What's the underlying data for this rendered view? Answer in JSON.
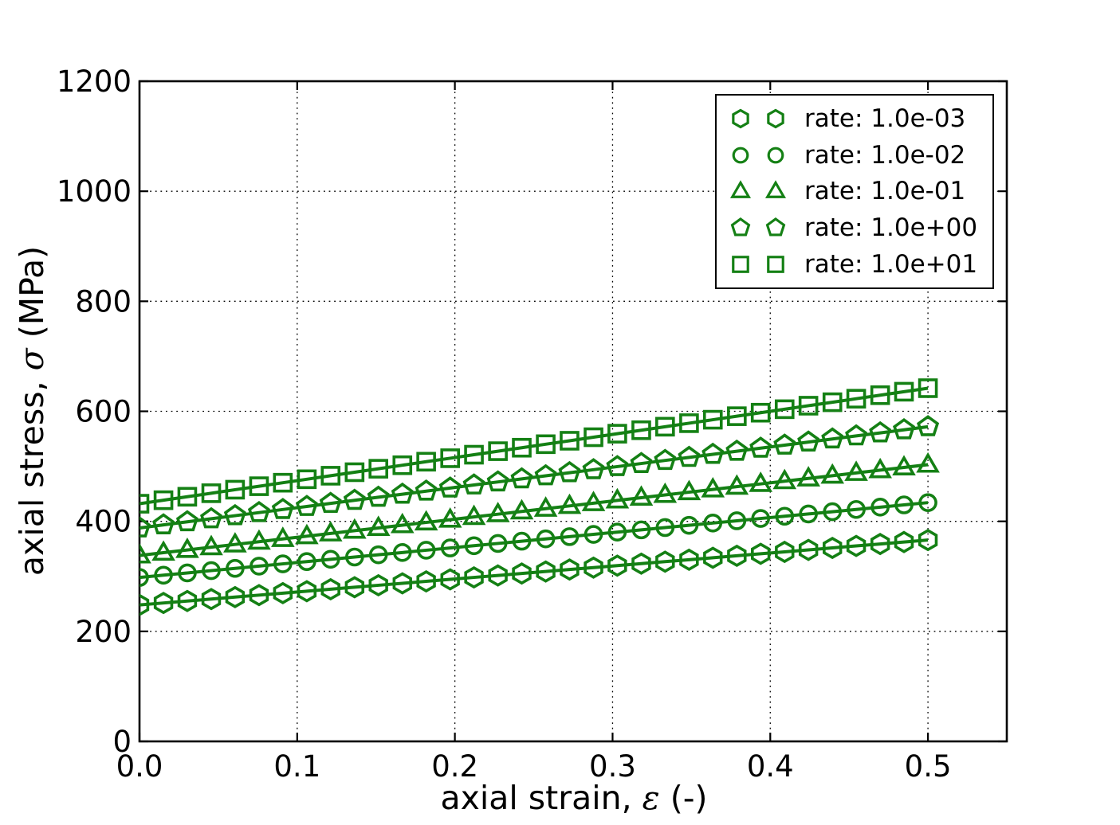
{
  "figure": {
    "background": "#ffffff",
    "axis_color": "#000000"
  },
  "chart_data": {
    "type": "line",
    "title": "",
    "xlabel": "axial strain, ε (-)",
    "ylabel": "axial stress, σ (MPa)",
    "label_parts": {
      "x_prefix": "axial strain, ",
      "x_symbol": "ε",
      "x_suffix": " (-)",
      "y_prefix": "axial stress, ",
      "y_symbol": "σ",
      "y_suffix": " (MPa)"
    },
    "xlim": [
      0,
      0.55
    ],
    "ylim": [
      0,
      1200
    ],
    "xticks": [
      0.0,
      0.1,
      0.2,
      0.3,
      0.4,
      0.5
    ],
    "xtick_labels": [
      "0.0",
      "0.1",
      "0.2",
      "0.3",
      "0.4",
      "0.5"
    ],
    "yticks": [
      0,
      200,
      400,
      600,
      800,
      1000,
      1200
    ],
    "ytick_labels": [
      "0",
      "200",
      "400",
      "600",
      "800",
      "1000",
      "1200"
    ],
    "grid": true,
    "grid_style": "dotted",
    "grid_color": "#000000",
    "legend_position": "upper right",
    "color": "#148014",
    "marker_fill": "none",
    "x": [
      0.0,
      0.0152,
      0.0303,
      0.0455,
      0.0606,
      0.0758,
      0.0909,
      0.1061,
      0.1212,
      0.1364,
      0.1515,
      0.1667,
      0.1818,
      0.197,
      0.2121,
      0.2273,
      0.2424,
      0.2576,
      0.2727,
      0.2879,
      0.303,
      0.3182,
      0.3333,
      0.3485,
      0.3636,
      0.3788,
      0.3939,
      0.4091,
      0.4242,
      0.4394,
      0.4545,
      0.4697,
      0.4848,
      0.5
    ],
    "series": [
      {
        "name": "rate: 1.0e-03",
        "marker": "hexagon",
        "values": [
          248.0,
          251.6,
          255.2,
          258.7,
          262.3,
          265.9,
          269.5,
          273.0,
          276.6,
          280.2,
          283.8,
          287.3,
          290.9,
          294.5,
          298.1,
          301.6,
          305.2,
          308.8,
          312.4,
          315.9,
          319.5,
          323.1,
          326.7,
          330.2,
          333.8,
          337.4,
          341.0,
          344.5,
          348.1,
          351.7,
          355.3,
          358.8,
          362.4,
          366.0
        ]
      },
      {
        "name": "rate: 1.0e-02",
        "marker": "circle",
        "values": [
          298.0,
          302.1,
          306.2,
          310.4,
          314.5,
          318.6,
          322.7,
          326.8,
          331.0,
          335.1,
          339.2,
          343.3,
          347.5,
          351.6,
          355.7,
          359.8,
          363.9,
          368.1,
          372.2,
          376.3,
          380.4,
          384.5,
          388.7,
          392.8,
          396.9,
          401.0,
          405.2,
          409.3,
          413.4,
          417.5,
          421.6,
          425.8,
          429.9,
          434.0
        ]
      },
      {
        "name": "rate: 1.0e-01",
        "marker": "triangle-up",
        "values": [
          338,
          343,
          348,
          353,
          358,
          363,
          368,
          373,
          378,
          383,
          388,
          393,
          398,
          403,
          408,
          413,
          418,
          423,
          428,
          433,
          438,
          443,
          448,
          453,
          458,
          463,
          468,
          473,
          478,
          483,
          488,
          493,
          498,
          503
        ]
      },
      {
        "name": "rate: 1.0e+00",
        "marker": "pentagon",
        "values": [
          388.0,
          393.6,
          399.2,
          404.7,
          410.3,
          415.9,
          421.5,
          427.0,
          432.6,
          438.2,
          443.8,
          449.3,
          454.9,
          460.5,
          466.1,
          471.6,
          477.2,
          482.8,
          488.4,
          493.9,
          499.5,
          505.1,
          510.7,
          516.2,
          521.8,
          527.4,
          533.0,
          538.5,
          544.1,
          549.7,
          555.3,
          560.8,
          566.4,
          572.0
        ]
      },
      {
        "name": "rate: 1.0e+01",
        "marker": "square",
        "values": [
          432.0,
          438.4,
          444.7,
          451.1,
          457.5,
          463.8,
          470.2,
          476.5,
          482.9,
          489.3,
          495.6,
          502.0,
          508.4,
          514.7,
          521.1,
          527.5,
          533.8,
          540.2,
          546.5,
          552.9,
          559.3,
          565.6,
          572.0,
          578.4,
          584.7,
          591.1,
          597.5,
          603.8,
          610.2,
          616.5,
          622.9,
          629.3,
          635.6,
          642.0
        ]
      }
    ]
  }
}
